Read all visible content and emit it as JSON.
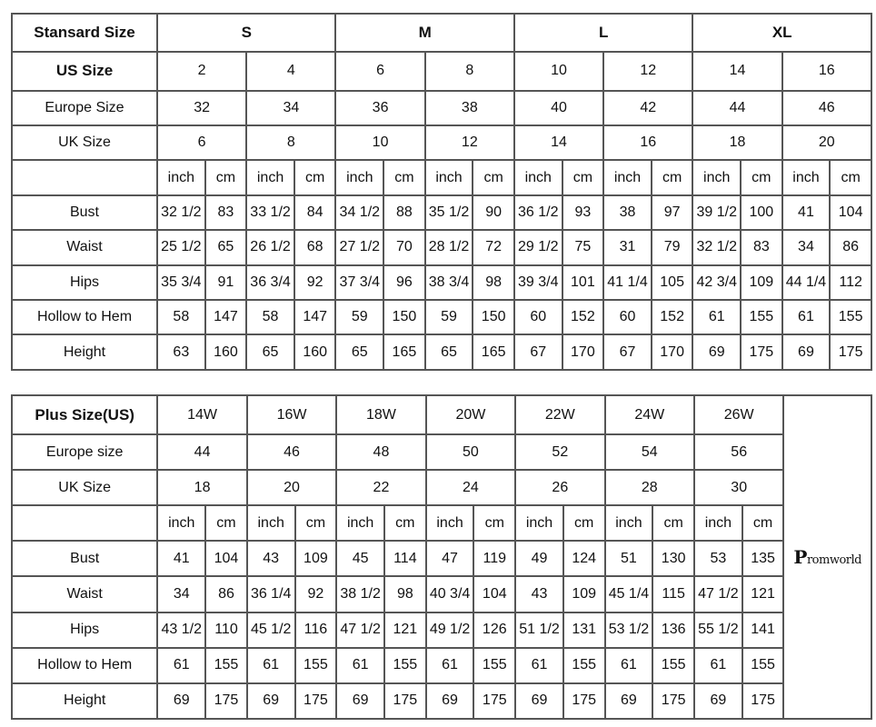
{
  "standard": {
    "header_label": "Stansard Size",
    "groups": [
      "S",
      "M",
      "L",
      "XL"
    ],
    "us_label": "US Size",
    "us": [
      "2",
      "4",
      "6",
      "8",
      "10",
      "12",
      "14",
      "16"
    ],
    "europe_label": "Europe Size",
    "europe": [
      "32",
      "34",
      "36",
      "38",
      "40",
      "42",
      "44",
      "46"
    ],
    "uk_label": "UK Size",
    "uk": [
      "6",
      "8",
      "10",
      "12",
      "14",
      "16",
      "18",
      "20"
    ],
    "unit_inch": "inch",
    "unit_cm": "cm",
    "measurements": [
      {
        "label": "Bust",
        "values": [
          "32 1/2",
          "83",
          "33 1/2",
          "84",
          "34 1/2",
          "88",
          "35 1/2",
          "90",
          "36 1/2",
          "93",
          "38",
          "97",
          "39 1/2",
          "100",
          "41",
          "104"
        ]
      },
      {
        "label": "Waist",
        "values": [
          "25 1/2",
          "65",
          "26 1/2",
          "68",
          "27 1/2",
          "70",
          "28 1/2",
          "72",
          "29 1/2",
          "75",
          "31",
          "79",
          "32 1/2",
          "83",
          "34",
          "86"
        ]
      },
      {
        "label": "Hips",
        "values": [
          "35 3/4",
          "91",
          "36 3/4",
          "92",
          "37 3/4",
          "96",
          "38 3/4",
          "98",
          "39 3/4",
          "101",
          "41 1/4",
          "105",
          "42 3/4",
          "109",
          "44 1/4",
          "112"
        ]
      },
      {
        "label": "Hollow to Hem",
        "values": [
          "58",
          "147",
          "58",
          "147",
          "59",
          "150",
          "59",
          "150",
          "60",
          "152",
          "60",
          "152",
          "61",
          "155",
          "61",
          "155"
        ]
      },
      {
        "label": "Height",
        "values": [
          "63",
          "160",
          "65",
          "160",
          "65",
          "165",
          "65",
          "165",
          "67",
          "170",
          "67",
          "170",
          "69",
          "175",
          "69",
          "175"
        ]
      }
    ]
  },
  "plus": {
    "header_label": "Plus Size(US)",
    "us": [
      "14W",
      "16W",
      "18W",
      "20W",
      "22W",
      "24W",
      "26W"
    ],
    "europe_label": "Europe size",
    "europe": [
      "44",
      "46",
      "48",
      "50",
      "52",
      "54",
      "56"
    ],
    "uk_label": "UK Size",
    "uk": [
      "18",
      "20",
      "22",
      "24",
      "26",
      "28",
      "30"
    ],
    "unit_inch": "inch",
    "unit_cm": "cm",
    "measurements": [
      {
        "label": "Bust",
        "values": [
          "41",
          "104",
          "43",
          "109",
          "45",
          "114",
          "47",
          "119",
          "49",
          "124",
          "51",
          "130",
          "53",
          "135"
        ]
      },
      {
        "label": "Waist",
        "values": [
          "34",
          "86",
          "36 1/4",
          "92",
          "38 1/2",
          "98",
          "40 3/4",
          "104",
          "43",
          "109",
          "45 1/4",
          "115",
          "47 1/2",
          "121"
        ]
      },
      {
        "label": "Hips",
        "values": [
          "43 1/2",
          "110",
          "45 1/2",
          "116",
          "47 1/2",
          "121",
          "49 1/2",
          "126",
          "51 1/2",
          "131",
          "53 1/2",
          "136",
          "55 1/2",
          "141"
        ]
      },
      {
        "label": "Hollow to Hem",
        "values": [
          "61",
          "155",
          "61",
          "155",
          "61",
          "155",
          "61",
          "155",
          "61",
          "155",
          "61",
          "155",
          "61",
          "155"
        ]
      },
      {
        "label": "Height",
        "values": [
          "69",
          "175",
          "69",
          "175",
          "69",
          "175",
          "69",
          "175",
          "69",
          "175",
          "69",
          "175",
          "69",
          "175"
        ]
      }
    ]
  },
  "watermark": "Promworld"
}
